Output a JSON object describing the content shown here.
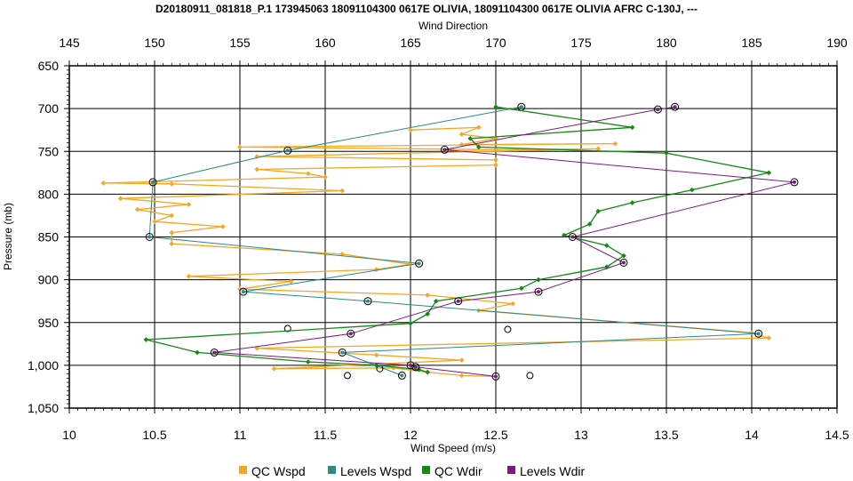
{
  "chart_data": {
    "type": "scatter",
    "title": "D20180911_081818_P.1 173945063 18091104300 0617E OLIVIA, 18091104300 0617E OLIVIA AFRC C-130J, ---",
    "xlabel_bottom": "Wind Speed (m/s)",
    "xlabel_top": "Wind Direction",
    "ylabel": "Pressure (mb)",
    "xlim_bottom": [
      10,
      14.5
    ],
    "xlim_top": [
      145,
      190
    ],
    "ylim": [
      650,
      1050
    ],
    "y_inverted": true,
    "grid": true,
    "legend_position": "bottom",
    "x_ticks_bottom": [
      "10",
      "10.5",
      "11",
      "11.5",
      "12",
      "12.5",
      "13",
      "13.5",
      "14",
      "14.5"
    ],
    "x_ticks_top": [
      "145",
      "150",
      "155",
      "160",
      "165",
      "170",
      "175",
      "180",
      "185",
      "190"
    ],
    "y_ticks": [
      "650",
      "700",
      "750",
      "800",
      "850",
      "900",
      "950",
      "1,000",
      "1,050"
    ],
    "series": [
      {
        "name": "QC Wspd",
        "color": "#f5a623",
        "axis": "bottom",
        "points": [
          [
            12.0,
            725
          ],
          [
            12.4,
            722
          ],
          [
            12.3,
            730
          ],
          [
            12.5,
            735
          ],
          [
            12.3,
            742
          ],
          [
            13.2,
            741
          ],
          [
            11.0,
            745
          ],
          [
            12.5,
            748
          ],
          [
            13.1,
            747
          ],
          [
            11.1,
            756
          ],
          [
            12.5,
            760
          ],
          [
            12.5,
            766
          ],
          [
            11.1,
            771
          ],
          [
            11.4,
            776
          ],
          [
            11.5,
            780
          ],
          [
            10.2,
            787
          ],
          [
            10.6,
            788
          ],
          [
            11.6,
            796
          ],
          [
            10.3,
            805
          ],
          [
            10.7,
            812
          ],
          [
            10.4,
            818
          ],
          [
            10.6,
            825
          ],
          [
            10.5,
            832
          ],
          [
            10.9,
            838
          ],
          [
            10.6,
            845
          ],
          [
            10.6,
            858
          ],
          [
            11.6,
            870
          ],
          [
            12.0,
            882
          ],
          [
            11.8,
            888
          ],
          [
            10.7,
            896
          ],
          [
            11.3,
            902
          ],
          [
            11.0,
            911
          ],
          [
            12.1,
            918
          ],
          [
            12.6,
            928
          ],
          [
            12.4,
            936
          ],
          [
            14.0,
            962
          ],
          [
            14.1,
            968
          ],
          [
            11.1,
            980
          ],
          [
            11.8,
            988
          ],
          [
            12.3,
            994
          ],
          [
            11.2,
            1004
          ],
          [
            11.9,
            1003
          ],
          [
            12.1,
            1008
          ],
          [
            12.3,
            1012
          ],
          [
            12.5,
            1013
          ]
        ]
      },
      {
        "name": "Levels Wspd",
        "color": "#2a8a8a",
        "axis": "bottom",
        "points": [
          [
            12.65,
            698
          ],
          [
            11.28,
            749
          ],
          [
            10.49,
            786
          ],
          [
            10.47,
            850
          ],
          [
            12.05,
            881
          ],
          [
            11.02,
            914
          ],
          [
            11.75,
            925
          ],
          [
            14.04,
            963
          ],
          [
            11.6,
            985
          ],
          [
            11.95,
            1012
          ]
        ],
        "open_circles": [
          [
            11.28,
            957
          ],
          [
            12.57,
            958
          ],
          [
            11.82,
            1004
          ],
          [
            11.63,
            1012
          ],
          [
            12.7,
            1012
          ]
        ]
      },
      {
        "name": "QC Wdir",
        "color": "#138a13",
        "axis": "top",
        "points": [
          [
            170.0,
            698
          ],
          [
            178.0,
            722
          ],
          [
            168.5,
            735
          ],
          [
            169.0,
            745
          ],
          [
            180.0,
            752
          ],
          [
            186.0,
            775
          ],
          [
            181.5,
            795
          ],
          [
            178.0,
            810
          ],
          [
            176.0,
            820
          ],
          [
            175.5,
            835
          ],
          [
            174.0,
            848
          ],
          [
            176.5,
            860
          ],
          [
            177.5,
            872
          ],
          [
            176.5,
            885
          ],
          [
            172.5,
            900
          ],
          [
            171.5,
            910
          ],
          [
            166.5,
            925
          ],
          [
            166.0,
            940
          ],
          [
            165.0,
            951
          ],
          [
            149.5,
            970
          ],
          [
            152.5,
            985
          ],
          [
            159.0,
            996
          ],
          [
            163.0,
            1000
          ],
          [
            165.5,
            1005
          ],
          [
            166.0,
            1008
          ]
        ]
      },
      {
        "name": "Levels Wdir",
        "color": "#7d1a7d",
        "axis": "top",
        "points": [
          [
            180.5,
            698
          ],
          [
            179.5,
            701
          ],
          [
            167.0,
            748
          ],
          [
            187.5,
            786
          ],
          [
            174.5,
            850
          ],
          [
            177.5,
            880
          ],
          [
            172.5,
            914
          ],
          [
            167.8,
            925
          ],
          [
            161.5,
            963
          ],
          [
            153.5,
            985
          ],
          [
            165.0,
            1000
          ],
          [
            165.3,
            1002
          ],
          [
            170.0,
            1013
          ]
        ]
      }
    ]
  }
}
